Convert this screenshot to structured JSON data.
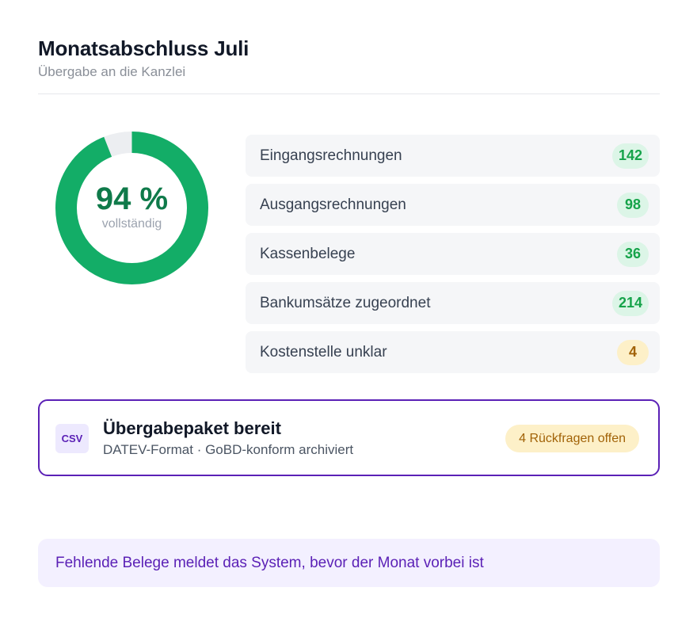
{
  "header": {
    "title": "Monatsabschluss Juli",
    "subtitle": "Übergabe an die Kanzlei"
  },
  "progress": {
    "percent_label": "94 %",
    "value": 0.94,
    "caption": "vollständig",
    "colors": {
      "fill": "#13ad67",
      "track": "#eceef1",
      "text": "#0f7a4a"
    }
  },
  "categories": [
    {
      "label": "Eingangsrechnungen",
      "count": "142",
      "status": "ok"
    },
    {
      "label": "Ausgangsrechnungen",
      "count": "98",
      "status": "ok"
    },
    {
      "label": "Kassenbelege",
      "count": "36",
      "status": "ok"
    },
    {
      "label": "Bankumsätze zugeordnet",
      "count": "214",
      "status": "ok"
    },
    {
      "label": "Kostenstelle unklar",
      "count": "4",
      "status": "warn"
    }
  ],
  "package": {
    "icon_label": "CSV",
    "icon": "csv-file-icon",
    "title": "Übergabepaket bereit",
    "subtitle": "DATEV-Format · GoBD-konform archiviert",
    "badge": "4 Rückfragen offen"
  },
  "notice": {
    "text": "Fehlende Belege meldet das System, bevor der Monat vorbei ist"
  },
  "colors": {
    "accent": "#5b21b6",
    "ok_badge_bg": "#dcf5e7",
    "ok_badge_text": "#16a34a",
    "warn_badge_bg": "#fdf0c8",
    "warn_badge_text": "#a16207"
  }
}
